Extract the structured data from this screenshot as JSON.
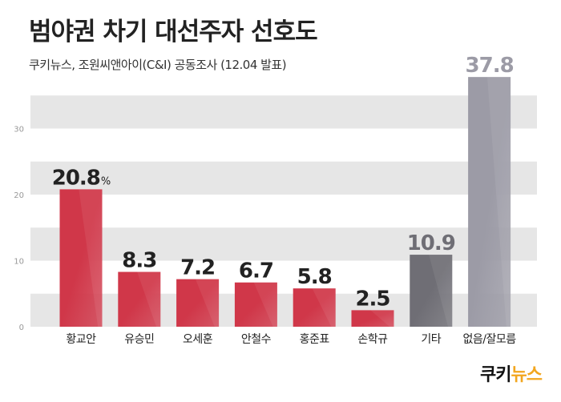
{
  "header": {
    "title": "범야권 차기 대선주자 선호도",
    "subtitle": "쿠키뉴스, 조원씨앤아이(C&I) 공동조사 (12.04 발표)"
  },
  "brand": {
    "prefix": "쿠키",
    "accent": "뉴스"
  },
  "chart_data": {
    "type": "bar",
    "title": "범야권 차기 대선주자 선호도",
    "subtitle": "쿠키뉴스, 조원씨앤아이(C&I) 공동조사 (12.04 발표)",
    "categories": [
      "황교안",
      "유승민",
      "오세훈",
      "안철수",
      "홍준표",
      "손학규",
      "기타",
      "없음/잘모름"
    ],
    "values": [
      20.8,
      8.3,
      7.2,
      6.7,
      5.8,
      2.5,
      10.9,
      37.8
    ],
    "value_labels": [
      "20.8",
      "8.3",
      "7.2",
      "6.7",
      "5.8",
      "2.5",
      "10.9",
      "37.8"
    ],
    "unit_label": "%",
    "ylim": [
      0,
      40
    ],
    "yticks": [
      0,
      10,
      20,
      30
    ],
    "grid": "alternating horizontal bands",
    "legend": "none",
    "colors": {
      "candidate": "#d03749",
      "other": "#6f6e75",
      "none": "#9c9ba6",
      "band": "#e6e6e6",
      "tick": "#999999"
    },
    "bar_color_groups": [
      "candidate",
      "candidate",
      "candidate",
      "candidate",
      "candidate",
      "candidate",
      "other",
      "none"
    ]
  }
}
